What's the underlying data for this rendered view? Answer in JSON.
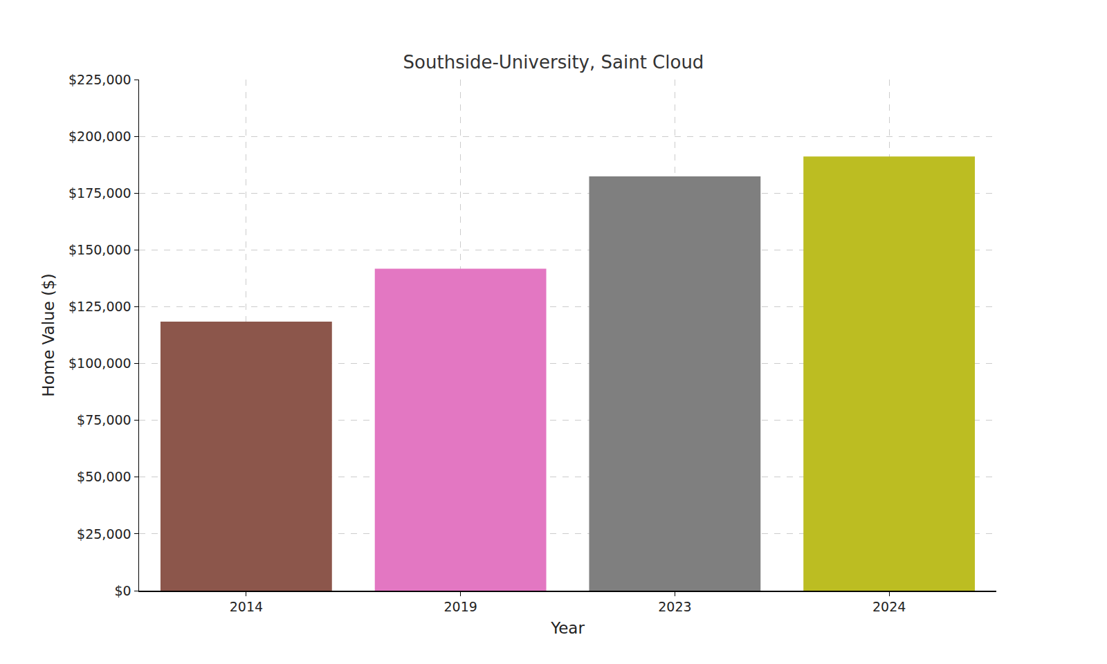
{
  "chart_data": {
    "type": "bar",
    "title": "Southside-University, Saint Cloud",
    "x_label": "Year",
    "y_label": "Home Value ($)",
    "categories": [
      "2014",
      "2019",
      "2023",
      "2024"
    ],
    "values": [
      118400,
      141700,
      182400,
      191100
    ],
    "colors": [
      "#8c564b",
      "#e377c2",
      "#7f7f7f",
      "#bcbd22"
    ],
    "ylim": [
      0,
      225000
    ],
    "yticks": [
      {
        "value": 0,
        "label": "$0"
      },
      {
        "value": 25000,
        "label": "$25,000"
      },
      {
        "value": 50000,
        "label": "$50,000"
      },
      {
        "value": 75000,
        "label": "$75,000"
      },
      {
        "value": 100000,
        "label": "$100,000"
      },
      {
        "value": 125000,
        "label": "$125,000"
      },
      {
        "value": 150000,
        "label": "$150,000"
      },
      {
        "value": 175000,
        "label": "$175,000"
      },
      {
        "value": 200000,
        "label": "$200,000"
      },
      {
        "value": 225000,
        "label": "$225,000"
      }
    ],
    "grid": true
  }
}
